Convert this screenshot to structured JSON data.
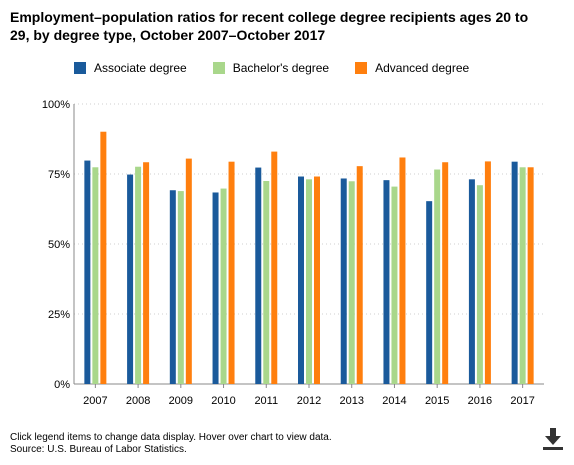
{
  "title": "Employment–population ratios for recent college degree recipients ages 20 to 29, by degree type, October 2007–October 2017",
  "legend": [
    {
      "label": "Associate degree",
      "color": "#1a5a9b"
    },
    {
      "label": "Bachelor's degree",
      "color": "#a9d78b"
    },
    {
      "label": "Advanced degree",
      "color": "#ff7f0e"
    }
  ],
  "footer": {
    "note": "Click legend items to change data display. Hover over chart to view data.",
    "source": "Source: U.S. Bureau of Labor Statistics."
  },
  "download_icon": "download-arrow",
  "chart_data": {
    "type": "bar",
    "categories": [
      "2007",
      "2008",
      "2009",
      "2010",
      "2011",
      "2012",
      "2013",
      "2014",
      "2015",
      "2016",
      "2017"
    ],
    "series": [
      {
        "name": "Associate degree",
        "color": "#1a5a9b",
        "values": [
          79.8,
          74.8,
          69.2,
          68.4,
          77.3,
          74.1,
          73.4,
          72.8,
          65.3,
          73.1,
          79.4
        ]
      },
      {
        "name": "Bachelor's degree",
        "color": "#a9d78b",
        "values": [
          77.4,
          77.6,
          68.9,
          69.8,
          72.5,
          73.1,
          72.4,
          70.5,
          76.6,
          71.0,
          77.4
        ]
      },
      {
        "name": "Advanced degree",
        "color": "#ff7f0e",
        "values": [
          90.1,
          79.2,
          80.5,
          79.4,
          83.0,
          74.1,
          77.8,
          80.9,
          79.2,
          79.5,
          77.4
        ]
      }
    ],
    "ylim": [
      0,
      100
    ],
    "yticks": [
      0,
      25,
      50,
      75,
      100
    ],
    "ytick_labels": [
      "0%",
      "25%",
      "50%",
      "75%",
      "100%"
    ],
    "grid": true,
    "legend_position": "top-left"
  }
}
